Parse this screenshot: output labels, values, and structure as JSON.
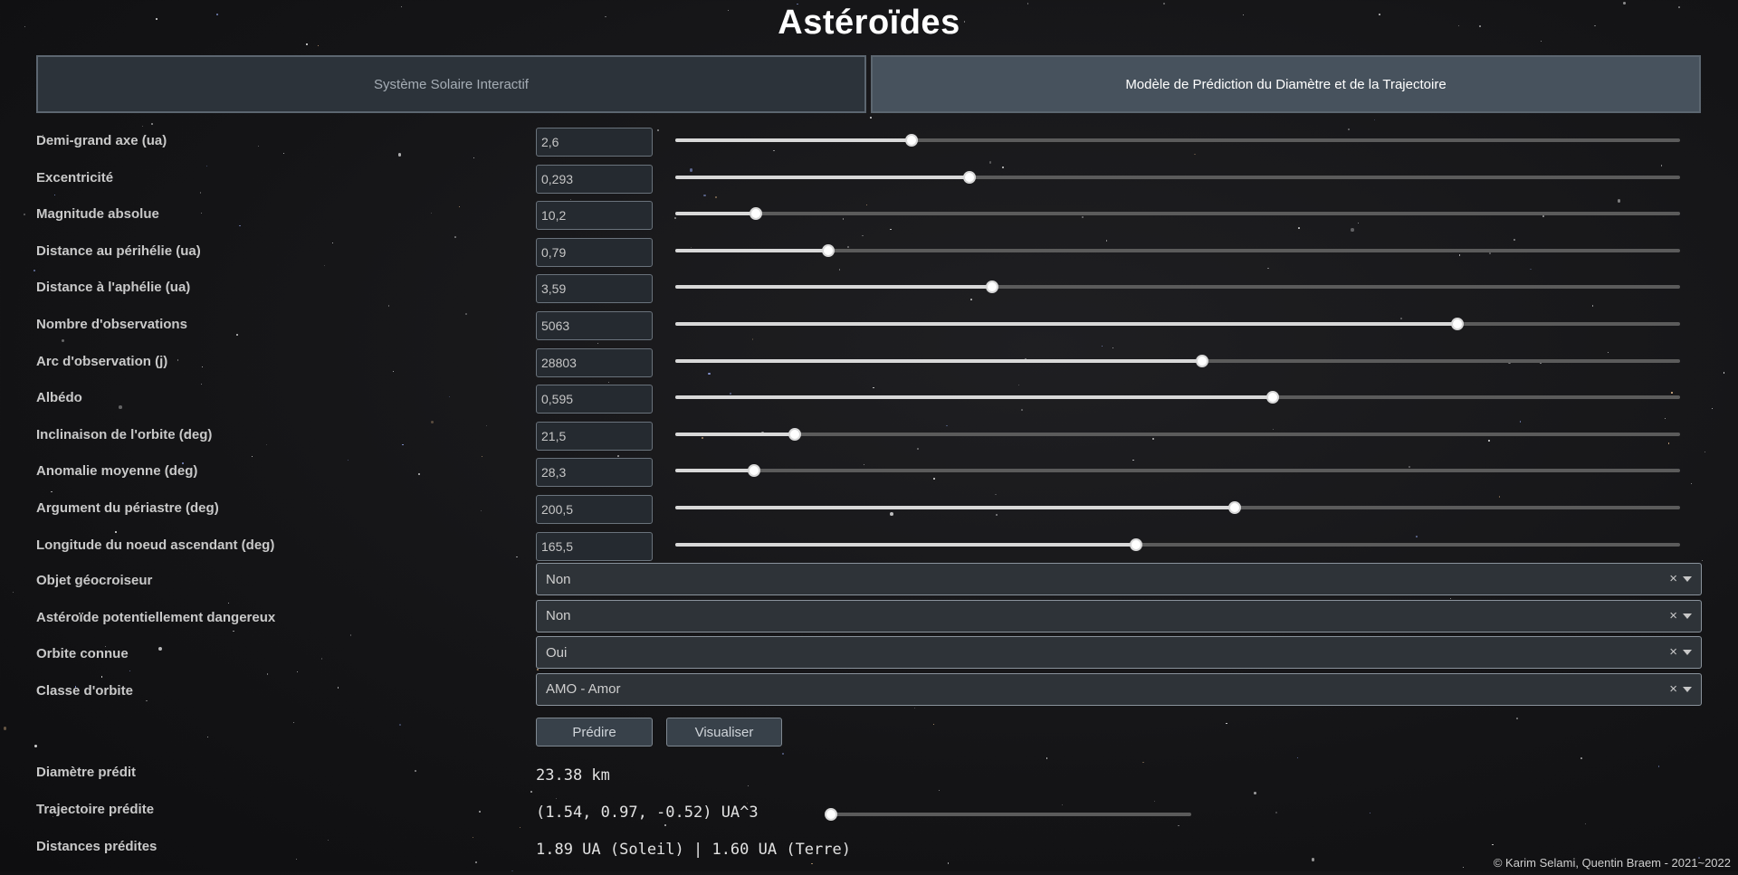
{
  "title": "Astéroïdes",
  "tabs": [
    {
      "label": "Système Solaire Interactif"
    },
    {
      "label": "Modèle de Prédiction du Diamètre et de la Trajectoire"
    }
  ],
  "params": [
    {
      "label": "Demi-grand axe (ua)",
      "value": "2,6",
      "fraction": 0.235
    },
    {
      "label": "Excentricité",
      "value": "0,293",
      "fraction": 0.293
    },
    {
      "label": "Magnitude absolue",
      "value": "10,2",
      "fraction": 0.08
    },
    {
      "label": "Distance au périhélie (ua)",
      "value": "0,79",
      "fraction": 0.152
    },
    {
      "label": "Distance à l'aphélie (ua)",
      "value": "3,59",
      "fraction": 0.315
    },
    {
      "label": "Nombre d'observations",
      "value": "5063",
      "fraction": 0.778
    },
    {
      "label": "Arc d'observation (j)",
      "value": "28803",
      "fraction": 0.524
    },
    {
      "label": "Albédo",
      "value": "0,595",
      "fraction": 0.595
    },
    {
      "label": "Inclinaison de l'orbite (deg)",
      "value": "21,5",
      "fraction": 0.119
    },
    {
      "label": "Anomalie moyenne (deg)",
      "value": "28,3",
      "fraction": 0.078
    },
    {
      "label": "Argument du périastre (deg)",
      "value": "200,5",
      "fraction": 0.557
    },
    {
      "label": "Longitude du noeud ascendant (deg)",
      "value": "165,5",
      "fraction": 0.459
    }
  ],
  "selects": [
    {
      "label": "Objet géocroiseur",
      "value": "Non"
    },
    {
      "label": "Astéroïde potentiellement dangereux",
      "value": "Non"
    },
    {
      "label": "Orbite connue",
      "value": "Oui"
    },
    {
      "label": "Classe d'orbite",
      "value": "AMO - Amor"
    }
  ],
  "buttons": {
    "predict": "Prédire",
    "visualize": "Visualiser"
  },
  "results": {
    "diameter_label": "Diamètre prédit",
    "diameter_value": "23.38 km",
    "trajectory_label": "Trajectoire prédite",
    "trajectory_value": "(1.54, 0.97, -0.52) UA^3",
    "trajectory_slider_fraction": 0.0,
    "distances_label": "Distances prédites",
    "distances_value": "1.89 UA (Soleil) | 1.60 UA (Terre)"
  },
  "footer": "© Karim Selami, Quentin Braem - 2021~2022",
  "icons": {
    "clear": "close-icon",
    "caret": "chevron-down-icon"
  }
}
